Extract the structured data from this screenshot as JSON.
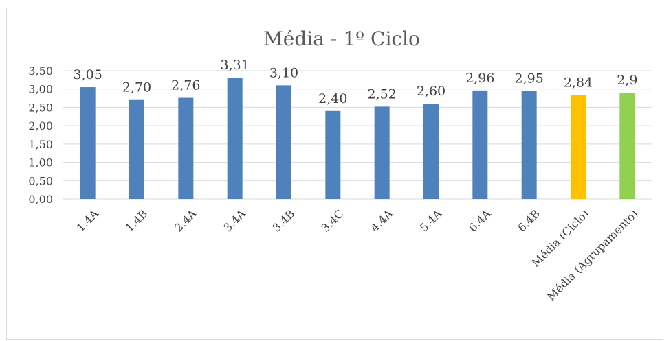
{
  "chart_data": {
    "type": "bar",
    "title": "Média - 1º Ciclo",
    "xlabel": "",
    "ylabel": "",
    "ylim": [
      0,
      3.5
    ],
    "y_ticks": [
      "0,00",
      "0,50",
      "1,00",
      "1,50",
      "2,00",
      "2,50",
      "3,00",
      "3,50"
    ],
    "y_tick_values": [
      0,
      0.5,
      1.0,
      1.5,
      2.0,
      2.5,
      3.0,
      3.5
    ],
    "grid": true,
    "legend": "none",
    "categories": [
      "1.4A",
      "1.4B",
      "2.4A",
      "3.4A",
      "3.4B",
      "3.4C",
      "4.4A",
      "5.4A",
      "6.4A",
      "6.4B",
      "Média (Ciclo)",
      "Média (Agrupamento)"
    ],
    "values": [
      3.05,
      2.7,
      2.76,
      3.31,
      3.1,
      2.4,
      2.52,
      2.6,
      2.96,
      2.95,
      2.84,
      2.9
    ],
    "data_labels": [
      "3,05",
      "2,70",
      "2,76",
      "3,31",
      "3,10",
      "2,40",
      "2,52",
      "2,60",
      "2,96",
      "2,95",
      "2,84",
      "2,9"
    ],
    "colors": [
      "#4f81bd",
      "#4f81bd",
      "#4f81bd",
      "#4f81bd",
      "#4f81bd",
      "#4f81bd",
      "#4f81bd",
      "#4f81bd",
      "#4f81bd",
      "#4f81bd",
      "#ffc000",
      "#92d050"
    ],
    "gridline_color": "#d9d9d9"
  }
}
